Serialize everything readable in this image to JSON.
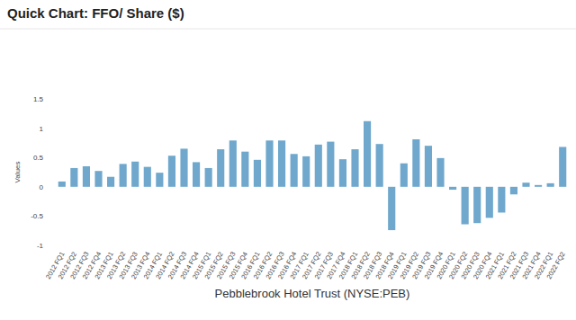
{
  "chart_data": {
    "type": "bar",
    "title": "Quick Chart: FFO/ Share ($)",
    "x_label": "Pebblebrook Hotel Trust (NYSE:PEB)",
    "y_label": "Values",
    "categories": [
      "2012 FQ1",
      "2012 FQ2",
      "2012 FQ3",
      "2012 FQ4",
      "2013 FQ1",
      "2013 FQ2",
      "2013 FQ3",
      "2013 FQ4",
      "2014 FQ1",
      "2014 FQ2",
      "2014 FQ3",
      "2014 FQ4",
      "2015 FQ1",
      "2015 FQ2",
      "2015 FQ3",
      "2015 FQ4",
      "2016 FQ1",
      "2016 FQ2",
      "2016 FQ3",
      "2016 FQ4",
      "2017 FQ1",
      "2017 FQ2",
      "2017 FQ3",
      "2017 FQ4",
      "2018 FQ1",
      "2018 FQ2",
      "2018 FQ3",
      "2018 FQ4",
      "2019 FQ1",
      "2019 FQ2",
      "2019 FQ3",
      "2019 FQ4",
      "2020 FQ1",
      "2020 FQ2",
      "2020 FQ3",
      "2020 FQ4",
      "2021 FQ1",
      "2021 FQ2",
      "2021 FQ3",
      "2021 FQ4",
      "2022 FQ1",
      "2022 FQ2"
    ],
    "values": [
      0.09,
      0.32,
      0.35,
      0.27,
      0.17,
      0.39,
      0.43,
      0.34,
      0.24,
      0.53,
      0.65,
      0.42,
      0.32,
      0.64,
      0.79,
      0.6,
      0.46,
      0.79,
      0.79,
      0.56,
      0.52,
      0.72,
      0.77,
      0.47,
      0.64,
      1.12,
      0.73,
      -0.74,
      0.4,
      0.81,
      0.7,
      0.49,
      -0.05,
      -0.64,
      -0.62,
      -0.53,
      -0.44,
      -0.13,
      0.07,
      0.03,
      0.06,
      0.68
    ],
    "color": "#6fa8cc",
    "ylim": [
      -1,
      1.5
    ],
    "yticks": [
      -1,
      -0.5,
      0,
      0.5,
      1,
      1.5
    ],
    "grid": false
  }
}
